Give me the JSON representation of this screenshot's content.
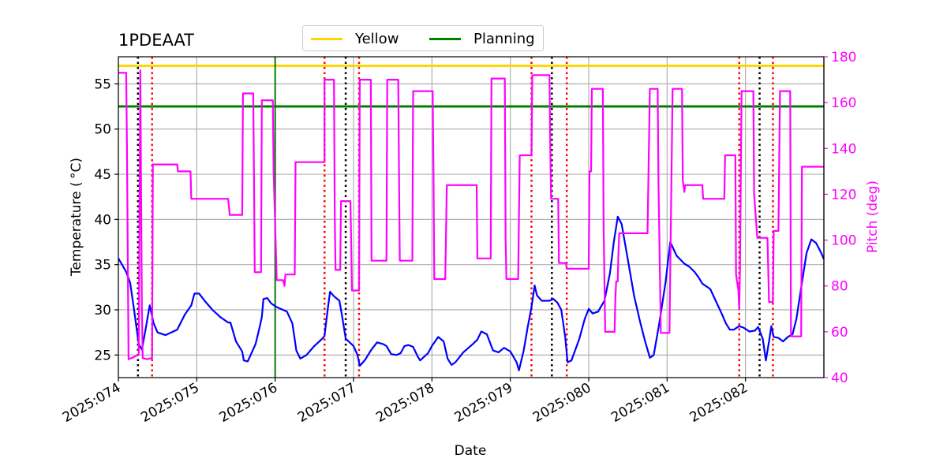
{
  "chart_data": {
    "type": "line",
    "title": "1PDEAAT",
    "xlabel": "Date",
    "ylabel": "Temperature ( °C)",
    "ylabel_right": "Pitch (deg)",
    "xlim": [
      0,
      9
    ],
    "ylim": [
      22.5,
      58
    ],
    "ylim_right": [
      40,
      180
    ],
    "x_ticks": [
      0,
      1,
      2,
      3,
      4,
      5,
      6,
      7,
      8
    ],
    "x_tick_labels": [
      "2025:074",
      "2025:075",
      "2025:076",
      "2025:077",
      "2025:078",
      "2025:079",
      "2025:080",
      "2025:081",
      "2025:082"
    ],
    "y_ticks": [
      25,
      30,
      35,
      40,
      45,
      50,
      55
    ],
    "y_ticks_right": [
      40,
      60,
      80,
      100,
      120,
      140,
      160,
      180
    ],
    "grid": true,
    "legend": {
      "placement": "top-center",
      "entries": [
        {
          "name": "Yellow",
          "color": "#ffd700"
        },
        {
          "name": "Planning",
          "color": "#008000"
        }
      ]
    },
    "limits": [
      {
        "name": "Yellow",
        "y": 57.0,
        "color": "#ffd700"
      },
      {
        "name": "Planning",
        "y": 52.5,
        "color": "#008000"
      }
    ],
    "now_line": {
      "x": 2.0,
      "color": "#008000"
    },
    "black_dotted_x": [
      0.25,
      2.9,
      5.53,
      8.18
    ],
    "red_dotted_x": [
      0.43,
      2.63,
      3.07,
      5.27,
      5.72,
      7.92,
      8.35
    ],
    "colors": {
      "temperature": "#0000ff",
      "pitch": "#ff00ff",
      "red_dotted": "#ff0000",
      "black_dotted": "#000000",
      "grid": "#b0b0b0"
    },
    "series": [
      {
        "axis": "left",
        "color": "#0000ff",
        "points": [
          [
            0,
            35.7
          ],
          [
            0.1,
            34.2
          ],
          [
            0.15,
            33
          ],
          [
            0.2,
            30
          ],
          [
            0.26,
            26.2
          ],
          [
            0.3,
            25.6
          ],
          [
            0.35,
            28
          ],
          [
            0.4,
            30.5
          ],
          [
            0.45,
            28.5
          ],
          [
            0.5,
            27.5
          ],
          [
            0.6,
            27.2
          ],
          [
            0.75,
            27.8
          ],
          [
            0.85,
            29.5
          ],
          [
            0.93,
            30.5
          ],
          [
            0.97,
            31.8
          ],
          [
            1.03,
            31.8
          ],
          [
            1.1,
            31
          ],
          [
            1.2,
            30
          ],
          [
            1.3,
            29.2
          ],
          [
            1.4,
            28.6
          ],
          [
            1.43,
            28.6
          ],
          [
            1.5,
            26.5
          ],
          [
            1.58,
            25.4
          ],
          [
            1.6,
            24.4
          ],
          [
            1.65,
            24.3
          ],
          [
            1.75,
            26.2
          ],
          [
            1.8,
            28
          ],
          [
            1.83,
            29.2
          ],
          [
            1.85,
            31.2
          ],
          [
            1.9,
            31.3
          ],
          [
            1.95,
            30.7
          ],
          [
            2.02,
            30.3
          ],
          [
            2.1,
            30
          ],
          [
            2.15,
            29.8
          ],
          [
            2.22,
            28.5
          ],
          [
            2.27,
            25.5
          ],
          [
            2.32,
            24.6
          ],
          [
            2.4,
            25
          ],
          [
            2.5,
            26
          ],
          [
            2.6,
            26.8
          ],
          [
            2.63,
            27.1
          ],
          [
            2.67,
            30
          ],
          [
            2.7,
            32
          ],
          [
            2.75,
            31.5
          ],
          [
            2.82,
            31
          ],
          [
            2.85,
            29.5
          ],
          [
            2.9,
            26.8
          ],
          [
            3.0,
            26
          ],
          [
            3.05,
            25
          ],
          [
            3.08,
            23.8
          ],
          [
            3.15,
            24.5
          ],
          [
            3.22,
            25.5
          ],
          [
            3.3,
            26.4
          ],
          [
            3.38,
            26.2
          ],
          [
            3.42,
            26
          ],
          [
            3.48,
            25.1
          ],
          [
            3.55,
            25
          ],
          [
            3.6,
            25.2
          ],
          [
            3.65,
            26
          ],
          [
            3.7,
            26.1
          ],
          [
            3.76,
            25.9
          ],
          [
            3.82,
            24.8
          ],
          [
            3.85,
            24.4
          ],
          [
            3.95,
            25.2
          ],
          [
            4.0,
            26
          ],
          [
            4.08,
            27
          ],
          [
            4.15,
            26.5
          ],
          [
            4.2,
            24.6
          ],
          [
            4.25,
            23.9
          ],
          [
            4.3,
            24.2
          ],
          [
            4.4,
            25.3
          ],
          [
            4.52,
            26.2
          ],
          [
            4.58,
            26.7
          ],
          [
            4.63,
            27.6
          ],
          [
            4.7,
            27.3
          ],
          [
            4.78,
            25.5
          ],
          [
            4.85,
            25.3
          ],
          [
            4.92,
            25.8
          ],
          [
            5.0,
            25.4
          ],
          [
            5.08,
            24.2
          ],
          [
            5.11,
            23.3
          ],
          [
            5.17,
            25.5
          ],
          [
            5.22,
            28
          ],
          [
            5.27,
            30.3
          ],
          [
            5.31,
            32.7
          ],
          [
            5.34,
            31.6
          ],
          [
            5.4,
            31
          ],
          [
            5.5,
            31
          ],
          [
            5.55,
            31.2
          ],
          [
            5.6,
            30.8
          ],
          [
            5.65,
            30
          ],
          [
            5.7,
            27
          ],
          [
            5.73,
            24.2
          ],
          [
            5.78,
            24.4
          ],
          [
            5.88,
            26.8
          ],
          [
            5.95,
            29
          ],
          [
            6.0,
            30.1
          ],
          [
            6.05,
            29.6
          ],
          [
            6.12,
            29.8
          ],
          [
            6.2,
            31
          ],
          [
            6.27,
            34
          ],
          [
            6.32,
            37.5
          ],
          [
            6.37,
            40.3
          ],
          [
            6.42,
            39.5
          ],
          [
            6.5,
            35.5
          ],
          [
            6.58,
            31.5
          ],
          [
            6.66,
            28.5
          ],
          [
            6.72,
            26.5
          ],
          [
            6.78,
            24.7
          ],
          [
            6.83,
            25
          ],
          [
            6.9,
            28.5
          ],
          [
            6.98,
            33
          ],
          [
            7.04,
            37.5
          ],
          [
            7.12,
            36
          ],
          [
            7.22,
            35.1
          ],
          [
            7.28,
            34.8
          ],
          [
            7.35,
            34.2
          ],
          [
            7.4,
            33.6
          ],
          [
            7.45,
            32.9
          ],
          [
            7.55,
            32.3
          ],
          [
            7.62,
            31
          ],
          [
            7.7,
            29.5
          ],
          [
            7.75,
            28.5
          ],
          [
            7.8,
            27.8
          ],
          [
            7.85,
            27.8
          ],
          [
            7.92,
            28.2
          ],
          [
            7.98,
            28
          ],
          [
            8.05,
            27.6
          ],
          [
            8.12,
            27.7
          ],
          [
            8.16,
            28.1
          ],
          [
            8.22,
            26.8
          ],
          [
            8.26,
            24.4
          ],
          [
            8.3,
            26.5
          ],
          [
            8.33,
            28.2
          ],
          [
            8.36,
            27
          ],
          [
            8.42,
            26.9
          ],
          [
            8.48,
            26.5
          ],
          [
            8.54,
            27
          ],
          [
            8.6,
            27.3
          ],
          [
            8.65,
            29
          ],
          [
            8.72,
            33
          ],
          [
            8.78,
            36.3
          ],
          [
            8.84,
            37.8
          ],
          [
            8.9,
            37.4
          ],
          [
            8.96,
            36.4
          ],
          [
            9.0,
            35.6
          ]
        ]
      },
      {
        "axis": "right",
        "color": "#ff00ff",
        "points": [
          [
            0,
            173
          ],
          [
            0.1,
            173
          ],
          [
            0.11,
            140
          ],
          [
            0.13,
            48
          ],
          [
            0.2,
            49
          ],
          [
            0.26,
            50
          ],
          [
            0.28,
            174
          ],
          [
            0.3,
            70
          ],
          [
            0.31,
            48.5
          ],
          [
            0.37,
            48
          ],
          [
            0.42,
            48.5
          ],
          [
            0.43,
            48.5
          ],
          [
            0.44,
            133
          ],
          [
            0.75,
            133
          ],
          [
            0.76,
            130
          ],
          [
            0.92,
            130
          ],
          [
            0.93,
            118
          ],
          [
            1.4,
            118
          ],
          [
            1.42,
            111
          ],
          [
            1.58,
            111
          ],
          [
            1.59,
            164
          ],
          [
            1.72,
            164
          ],
          [
            1.73,
            130
          ],
          [
            1.74,
            86
          ],
          [
            1.82,
            86
          ],
          [
            1.83,
            161
          ],
          [
            1.97,
            161
          ],
          [
            1.98,
            130
          ],
          [
            2.02,
            82.5
          ],
          [
            2.1,
            82.5
          ],
          [
            2.12,
            80
          ],
          [
            2.13,
            85
          ],
          [
            2.25,
            85
          ],
          [
            2.26,
            134
          ],
          [
            2.63,
            134
          ],
          [
            2.63,
            170
          ],
          [
            2.75,
            170
          ],
          [
            2.76,
            110
          ],
          [
            2.77,
            87
          ],
          [
            2.83,
            87
          ],
          [
            2.84,
            117
          ],
          [
            2.96,
            117
          ],
          [
            2.97,
            100
          ],
          [
            2.98,
            78
          ],
          [
            3.07,
            78
          ],
          [
            3.08,
            170
          ],
          [
            3.22,
            170
          ],
          [
            3.23,
            91
          ],
          [
            3.42,
            91
          ],
          [
            3.43,
            170
          ],
          [
            3.57,
            170
          ],
          [
            3.58,
            130
          ],
          [
            3.59,
            91
          ],
          [
            3.75,
            91
          ],
          [
            3.76,
            165
          ],
          [
            4.01,
            165
          ],
          [
            4.02,
            130
          ],
          [
            4.03,
            83
          ],
          [
            4.17,
            83
          ],
          [
            4.19,
            124
          ],
          [
            4.57,
            124
          ],
          [
            4.58,
            92
          ],
          [
            4.75,
            92
          ],
          [
            4.76,
            170.5
          ],
          [
            4.93,
            170.5
          ],
          [
            4.94,
            100
          ],
          [
            4.95,
            83
          ],
          [
            5.1,
            83
          ],
          [
            5.12,
            137
          ],
          [
            5.27,
            137
          ],
          [
            5.28,
            172
          ],
          [
            5.5,
            172
          ],
          [
            5.51,
            140
          ],
          [
            5.52,
            118
          ],
          [
            5.61,
            118
          ],
          [
            5.62,
            90
          ],
          [
            5.71,
            90
          ],
          [
            5.72,
            87.5
          ],
          [
            6.0,
            87.5
          ],
          [
            6.01,
            130
          ],
          [
            6.03,
            130
          ],
          [
            6.04,
            166
          ],
          [
            6.18,
            166
          ],
          [
            6.19,
            105
          ],
          [
            6.21,
            60
          ],
          [
            6.33,
            60
          ],
          [
            6.34,
            75
          ],
          [
            6.35,
            82
          ],
          [
            6.37,
            82
          ],
          [
            6.38,
            95
          ],
          [
            6.39,
            103
          ],
          [
            6.75,
            103
          ],
          [
            6.78,
            166
          ],
          [
            6.88,
            166
          ],
          [
            6.89,
            125
          ],
          [
            6.92,
            59.5
          ],
          [
            7.03,
            59.5
          ],
          [
            7.07,
            166
          ],
          [
            7.19,
            166
          ],
          [
            7.2,
            126
          ],
          [
            7.22,
            121
          ],
          [
            7.23,
            124
          ],
          [
            7.45,
            124
          ],
          [
            7.46,
            118
          ],
          [
            7.73,
            118
          ],
          [
            7.74,
            137
          ],
          [
            7.87,
            137
          ],
          [
            7.88,
            85
          ],
          [
            7.91,
            78
          ],
          [
            7.92,
            70
          ],
          [
            7.93,
            88
          ],
          [
            7.95,
            165
          ],
          [
            8.1,
            165
          ],
          [
            8.11,
            120
          ],
          [
            8.15,
            101
          ],
          [
            8.28,
            101
          ],
          [
            8.3,
            73
          ],
          [
            8.35,
            73
          ],
          [
            8.36,
            104
          ],
          [
            8.42,
            104
          ],
          [
            8.44,
            165
          ],
          [
            8.57,
            165
          ],
          [
            8.58,
            58
          ],
          [
            8.71,
            58
          ],
          [
            8.72,
            132
          ],
          [
            9.0,
            132
          ]
        ]
      }
    ]
  }
}
